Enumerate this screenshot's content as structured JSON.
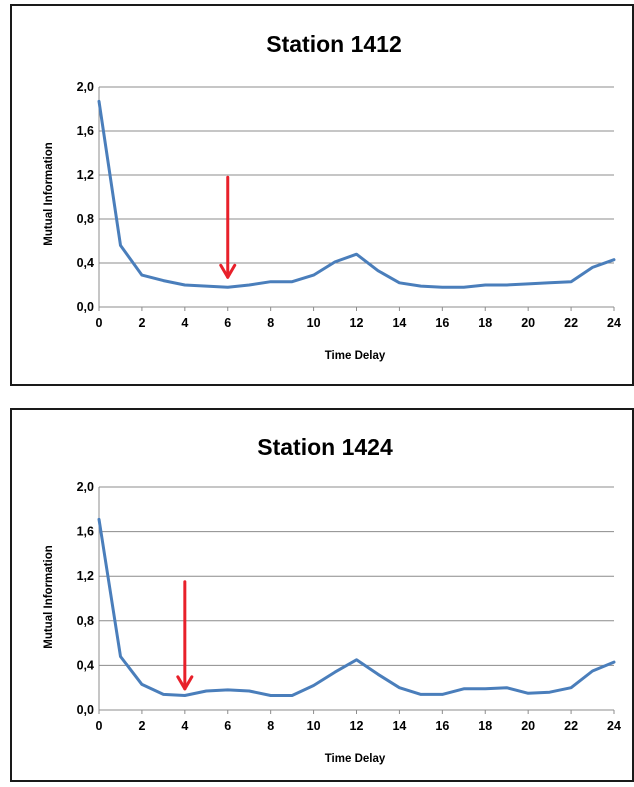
{
  "colors": {
    "series": "#4a7ebb",
    "arrow": "#e8202a",
    "grid": "#8c8c8c",
    "border": "#1a1a1a"
  },
  "chart_data": [
    {
      "type": "line",
      "title": "Station 1412",
      "xlabel": "Time Delay",
      "ylabel": "Mutual Information",
      "xlim": [
        0,
        24
      ],
      "ylim": [
        0,
        2.0
      ],
      "xticks": [
        "0",
        "2",
        "4",
        "6",
        "8",
        "10",
        "12",
        "14",
        "16",
        "18",
        "20",
        "22",
        "24"
      ],
      "yticks": [
        "0,0",
        "0,4",
        "0,8",
        "1,2",
        "1,6",
        "2,0"
      ],
      "grid": true,
      "series": [
        {
          "x": [
            0,
            1,
            2,
            3,
            4,
            5,
            6,
            7,
            8,
            9,
            10,
            11,
            12,
            13,
            14,
            15,
            16,
            17,
            18,
            19,
            20,
            21,
            22,
            23,
            24
          ],
          "y": [
            1.87,
            0.56,
            0.29,
            0.24,
            0.2,
            0.19,
            0.18,
            0.2,
            0.23,
            0.23,
            0.29,
            0.41,
            0.48,
            0.33,
            0.22,
            0.19,
            0.18,
            0.18,
            0.2,
            0.2,
            0.21,
            0.22,
            0.23,
            0.36,
            0.43
          ]
        }
      ],
      "annotation": {
        "type": "arrow",
        "x": 6,
        "y_from": 1.18,
        "y_to": 0.27
      }
    },
    {
      "type": "line",
      "title": "Station 1424",
      "xlabel": "Time Delay",
      "ylabel": "Mutual Information",
      "xlim": [
        0,
        24
      ],
      "ylim": [
        0,
        2.0
      ],
      "xticks": [
        "0",
        "2",
        "4",
        "6",
        "8",
        "10",
        "12",
        "14",
        "16",
        "18",
        "20",
        "22",
        "24"
      ],
      "yticks": [
        "0,0",
        "0,4",
        "0,8",
        "1,2",
        "1,6",
        "2,0"
      ],
      "grid": true,
      "series": [
        {
          "x": [
            0,
            1,
            2,
            3,
            4,
            5,
            6,
            7,
            8,
            9,
            10,
            11,
            12,
            13,
            14,
            15,
            16,
            17,
            18,
            19,
            20,
            21,
            22,
            23,
            24
          ],
          "y": [
            1.71,
            0.48,
            0.23,
            0.14,
            0.13,
            0.17,
            0.18,
            0.17,
            0.13,
            0.13,
            0.22,
            0.34,
            0.45,
            0.32,
            0.2,
            0.14,
            0.14,
            0.19,
            0.19,
            0.2,
            0.15,
            0.16,
            0.2,
            0.35,
            0.43
          ]
        }
      ],
      "annotation": {
        "type": "arrow",
        "x": 4,
        "y_from": 1.15,
        "y_to": 0.19
      }
    }
  ]
}
